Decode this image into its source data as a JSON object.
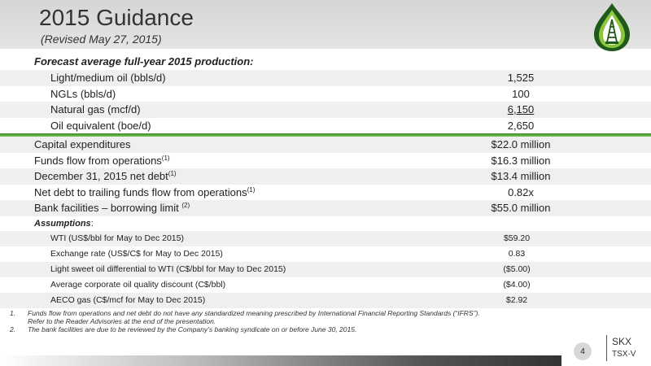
{
  "header": {
    "title": "2015 Guidance",
    "subtitle": "(Revised May 27, 2015)"
  },
  "production": {
    "heading": "Forecast average full-year 2015 production:",
    "rows": [
      {
        "label": "Light/medium oil (bbls/d)",
        "value": "1,525"
      },
      {
        "label": "NGLs (bbls/d)",
        "value": "100"
      },
      {
        "label": "Natural gas (mcf/d)",
        "value": "6,150"
      },
      {
        "label": "Oil equivalent (boe/d)",
        "value": "2,650"
      }
    ]
  },
  "main_rows": [
    {
      "label": "Capital expenditures",
      "sup": "",
      "value": "$22.0 million"
    },
    {
      "label": "Funds flow from operations",
      "sup": "(1)",
      "value": "$16.3 million"
    },
    {
      "label": "December 31, 2015 net debt",
      "sup": "(1)",
      "value": "$13.4 million"
    },
    {
      "label": "Net debt to trailing funds flow from operations",
      "sup": "(1)",
      "value": "0.82x"
    },
    {
      "label": "Bank facilities – borrowing limit ",
      "sup": "(2)",
      "value": "$55.0 million"
    }
  ],
  "assumptions": {
    "heading": "Assumptions",
    "colon": ":",
    "rows": [
      {
        "label": "WTI (US$/bbl for May to Dec 2015)",
        "value": "$59.20"
      },
      {
        "label": "Exchange rate (US$/C$ for May to Dec 2015)",
        "value": "0.83"
      },
      {
        "label": "Light sweet oil differential to WTI (C$/bbl for May to Dec 2015)",
        "value": "($5.00)"
      },
      {
        "label": "Average corporate oil quality discount (C$/bbl)",
        "value": "($4.00)"
      },
      {
        "label": "AECO gas (C$/mcf for May to Dec 2015)",
        "value": "$2.92"
      }
    ]
  },
  "footnotes": [
    {
      "num": "1.",
      "text": "Funds flow from operations and net debt do not have any standardized meaning prescribed by International Financial Reporting Standards (“IFRS”).",
      "text2": "Refer to the Reader Advisories at the end of the presentation."
    },
    {
      "num": "2.",
      "text": "The bank facilities are due to be reviewed by the Company’s banking syndicate on or before June 30, 2015.",
      "text2": ""
    }
  ],
  "footer": {
    "page_number": "4",
    "ticker": "SKX",
    "exchange": "TSX-V"
  },
  "colors": {
    "accent_green": "#3a8d2c",
    "logo_dark": "#1f5a1a",
    "logo_light": "#8cc63f"
  },
  "icons": {
    "logo": "oil-derrick-drop-logo"
  }
}
